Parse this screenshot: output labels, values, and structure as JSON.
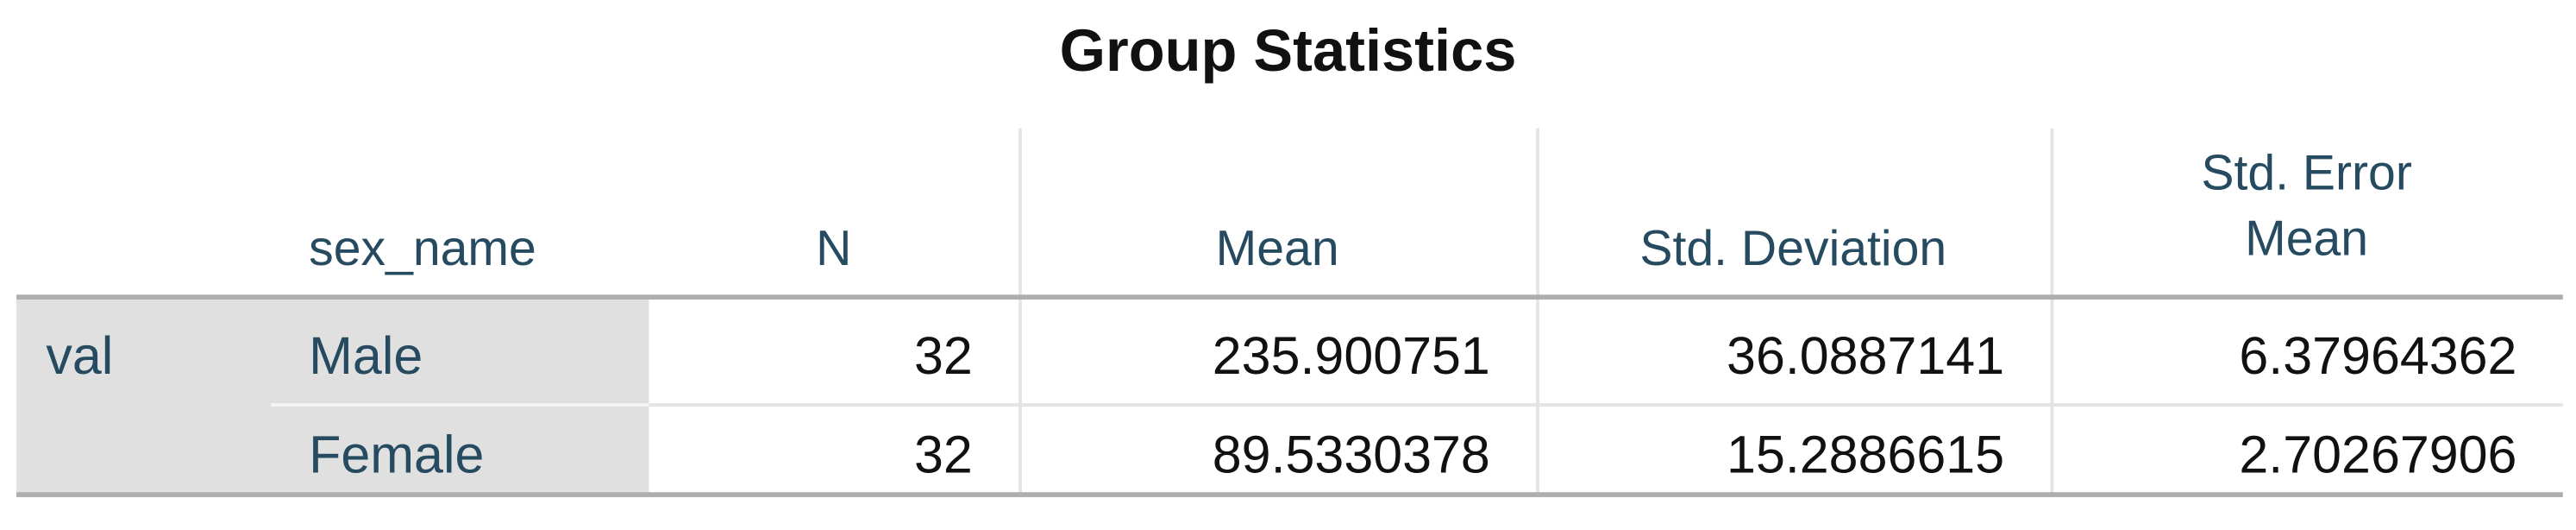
{
  "header": {
    "title": "Group Statistics"
  },
  "table": {
    "group_header": "sex_name",
    "columns": [
      "N",
      "Mean",
      "Std. Deviation",
      "Std. Error Mean"
    ],
    "variable": "val",
    "rows": [
      {
        "group": "Male",
        "values": [
          32,
          235.900751,
          36.0887141,
          6.37964362
        ]
      },
      {
        "group": "Female",
        "values": [
          32,
          89.5330378,
          15.2886615,
          2.70267906
        ]
      }
    ]
  }
}
